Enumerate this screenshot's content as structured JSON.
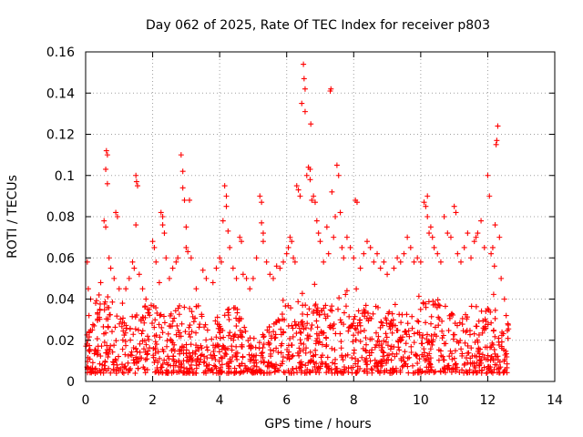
{
  "chart_data": {
    "type": "scatter",
    "title": "Day 062 of 2025, Rate Of TEC Index for receiver p803",
    "xlabel": "GPS time / hours",
    "ylabel": "ROTI / TECUs",
    "xlim": [
      0,
      14
    ],
    "ylim": [
      0,
      0.16
    ],
    "x_ticks": [
      0,
      2,
      4,
      6,
      8,
      10,
      12,
      14
    ],
    "x_tick_labels": [
      "0",
      "2",
      "4",
      "6",
      "8",
      "10",
      "12",
      "14"
    ],
    "y_ticks": [
      0,
      0.02,
      0.04,
      0.06,
      0.08,
      0.1,
      0.12,
      0.14,
      0.16
    ],
    "y_tick_labels": [
      "0",
      "0.02",
      "0.04",
      "0.06",
      "0.08",
      "0.1",
      "0.12",
      "0.14",
      "0.16"
    ],
    "grid": true,
    "marker": "+",
    "color": "#ff0000",
    "series": [
      {
        "name": "ROTI",
        "points": [
          [
            0.05,
            0.058
          ],
          [
            0.08,
            0.045
          ],
          [
            0.1,
            0.032
          ],
          [
            0.15,
            0.04
          ],
          [
            0.2,
            0.025
          ],
          [
            0.3,
            0.038
          ],
          [
            0.4,
            0.042
          ],
          [
            0.45,
            0.048
          ],
          [
            0.55,
            0.078
          ],
          [
            0.6,
            0.075
          ],
          [
            0.6,
            0.103
          ],
          [
            0.62,
            0.112
          ],
          [
            0.65,
            0.11
          ],
          [
            0.65,
            0.096
          ],
          [
            0.7,
            0.06
          ],
          [
            0.75,
            0.055
          ],
          [
            0.85,
            0.05
          ],
          [
            0.9,
            0.082
          ],
          [
            0.95,
            0.08
          ],
          [
            1.0,
            0.045
          ],
          [
            1.1,
            0.038
          ],
          [
            1.2,
            0.045
          ],
          [
            1.3,
            0.05
          ],
          [
            1.4,
            0.058
          ],
          [
            1.45,
            0.055
          ],
          [
            1.5,
            0.1
          ],
          [
            1.52,
            0.097
          ],
          [
            1.55,
            0.095
          ],
          [
            1.5,
            0.076
          ],
          [
            1.6,
            0.052
          ],
          [
            1.7,
            0.045
          ],
          [
            1.8,
            0.04
          ],
          [
            1.9,
            0.035
          ],
          [
            2.0,
            0.068
          ],
          [
            2.05,
            0.065
          ],
          [
            2.1,
            0.058
          ],
          [
            2.2,
            0.048
          ],
          [
            2.25,
            0.082
          ],
          [
            2.3,
            0.08
          ],
          [
            2.3,
            0.076
          ],
          [
            2.35,
            0.072
          ],
          [
            2.4,
            0.06
          ],
          [
            2.5,
            0.05
          ],
          [
            2.6,
            0.055
          ],
          [
            2.7,
            0.058
          ],
          [
            2.75,
            0.06
          ],
          [
            2.85,
            0.11
          ],
          [
            2.9,
            0.102
          ],
          [
            2.9,
            0.094
          ],
          [
            2.95,
            0.088
          ],
          [
            3.0,
            0.075
          ],
          [
            3.0,
            0.065
          ],
          [
            3.05,
            0.063
          ],
          [
            3.1,
            0.088
          ],
          [
            3.15,
            0.06
          ],
          [
            3.3,
            0.045
          ],
          [
            3.5,
            0.054
          ],
          [
            3.6,
            0.05
          ],
          [
            3.8,
            0.048
          ],
          [
            3.9,
            0.055
          ],
          [
            4.0,
            0.06
          ],
          [
            4.05,
            0.058
          ],
          [
            4.1,
            0.078
          ],
          [
            4.15,
            0.095
          ],
          [
            4.2,
            0.09
          ],
          [
            4.2,
            0.085
          ],
          [
            4.25,
            0.073
          ],
          [
            4.3,
            0.065
          ],
          [
            4.4,
            0.055
          ],
          [
            4.5,
            0.05
          ],
          [
            4.6,
            0.07
          ],
          [
            4.65,
            0.068
          ],
          [
            4.7,
            0.052
          ],
          [
            4.8,
            0.05
          ],
          [
            4.9,
            0.045
          ],
          [
            5.0,
            0.05
          ],
          [
            5.1,
            0.06
          ],
          [
            5.2,
            0.09
          ],
          [
            5.25,
            0.087
          ],
          [
            5.25,
            0.077
          ],
          [
            5.3,
            0.072
          ],
          [
            5.3,
            0.068
          ],
          [
            5.4,
            0.058
          ],
          [
            5.5,
            0.052
          ],
          [
            5.6,
            0.05
          ],
          [
            5.7,
            0.056
          ],
          [
            5.8,
            0.055
          ],
          [
            5.9,
            0.058
          ],
          [
            6.0,
            0.062
          ],
          [
            6.05,
            0.065
          ],
          [
            6.1,
            0.07
          ],
          [
            6.15,
            0.068
          ],
          [
            6.2,
            0.06
          ],
          [
            6.25,
            0.058
          ],
          [
            6.3,
            0.095
          ],
          [
            6.35,
            0.093
          ],
          [
            6.4,
            0.09
          ],
          [
            6.45,
            0.135
          ],
          [
            6.5,
            0.154
          ],
          [
            6.52,
            0.147
          ],
          [
            6.55,
            0.142
          ],
          [
            6.55,
            0.131
          ],
          [
            6.6,
            0.1
          ],
          [
            6.65,
            0.104
          ],
          [
            6.7,
            0.103
          ],
          [
            6.7,
            0.098
          ],
          [
            6.72,
            0.125
          ],
          [
            6.75,
            0.088
          ],
          [
            6.8,
            0.09
          ],
          [
            6.85,
            0.087
          ],
          [
            6.9,
            0.078
          ],
          [
            6.95,
            0.072
          ],
          [
            7.0,
            0.068
          ],
          [
            7.1,
            0.058
          ],
          [
            7.2,
            0.075
          ],
          [
            7.25,
            0.062
          ],
          [
            7.3,
            0.141
          ],
          [
            7.32,
            0.142
          ],
          [
            7.35,
            0.092
          ],
          [
            7.4,
            0.07
          ],
          [
            7.45,
            0.08
          ],
          [
            7.5,
            0.105
          ],
          [
            7.55,
            0.1
          ],
          [
            7.6,
            0.082
          ],
          [
            7.65,
            0.065
          ],
          [
            7.7,
            0.06
          ],
          [
            7.8,
            0.07
          ],
          [
            7.9,
            0.065
          ],
          [
            8.0,
            0.06
          ],
          [
            8.05,
            0.088
          ],
          [
            8.1,
            0.087
          ],
          [
            8.2,
            0.055
          ],
          [
            8.3,
            0.062
          ],
          [
            8.4,
            0.068
          ],
          [
            8.5,
            0.065
          ],
          [
            8.6,
            0.058
          ],
          [
            8.7,
            0.062
          ],
          [
            8.8,
            0.055
          ],
          [
            8.9,
            0.058
          ],
          [
            9.0,
            0.052
          ],
          [
            9.2,
            0.055
          ],
          [
            9.3,
            0.06
          ],
          [
            9.4,
            0.058
          ],
          [
            9.5,
            0.062
          ],
          [
            9.6,
            0.07
          ],
          [
            9.7,
            0.065
          ],
          [
            9.8,
            0.058
          ],
          [
            9.9,
            0.06
          ],
          [
            10.0,
            0.058
          ],
          [
            10.1,
            0.087
          ],
          [
            10.15,
            0.085
          ],
          [
            10.2,
            0.09
          ],
          [
            10.2,
            0.08
          ],
          [
            10.25,
            0.072
          ],
          [
            10.3,
            0.075
          ],
          [
            10.35,
            0.07
          ],
          [
            10.4,
            0.065
          ],
          [
            10.5,
            0.062
          ],
          [
            10.6,
            0.058
          ],
          [
            10.7,
            0.08
          ],
          [
            10.8,
            0.072
          ],
          [
            10.9,
            0.07
          ],
          [
            11.0,
            0.085
          ],
          [
            11.05,
            0.082
          ],
          [
            11.1,
            0.062
          ],
          [
            11.2,
            0.058
          ],
          [
            11.3,
            0.065
          ],
          [
            11.4,
            0.072
          ],
          [
            11.5,
            0.06
          ],
          [
            11.6,
            0.068
          ],
          [
            11.65,
            0.07
          ],
          [
            11.7,
            0.072
          ],
          [
            11.8,
            0.078
          ],
          [
            11.9,
            0.065
          ],
          [
            12.0,
            0.1
          ],
          [
            12.05,
            0.09
          ],
          [
            12.1,
            0.062
          ],
          [
            12.15,
            0.065
          ],
          [
            12.2,
            0.056
          ],
          [
            12.22,
            0.076
          ],
          [
            12.25,
            0.115
          ],
          [
            12.27,
            0.117
          ],
          [
            12.3,
            0.124
          ],
          [
            12.35,
            0.07
          ],
          [
            12.4,
            0.05
          ],
          [
            12.5,
            0.04
          ],
          [
            12.55,
            0.032
          ],
          [
            12.6,
            0.028
          ]
        ],
        "density_envelope": {
          "x": [
            0,
            0.5,
            1,
            1.5,
            2,
            2.5,
            3,
            3.5,
            4,
            4.5,
            5,
            5.5,
            6,
            6.5,
            7,
            7.5,
            8,
            8.5,
            9,
            9.5,
            10,
            10.5,
            11,
            11.5,
            12,
            12.5,
            12.6
          ],
          "upper": [
            0.022,
            0.04,
            0.032,
            0.036,
            0.038,
            0.035,
            0.04,
            0.033,
            0.034,
            0.037,
            0.02,
            0.028,
            0.038,
            0.042,
            0.036,
            0.04,
            0.037,
            0.038,
            0.035,
            0.034,
            0.042,
            0.038,
            0.035,
            0.04,
            0.036,
            0.025,
            0.03
          ]
        }
      }
    ]
  }
}
